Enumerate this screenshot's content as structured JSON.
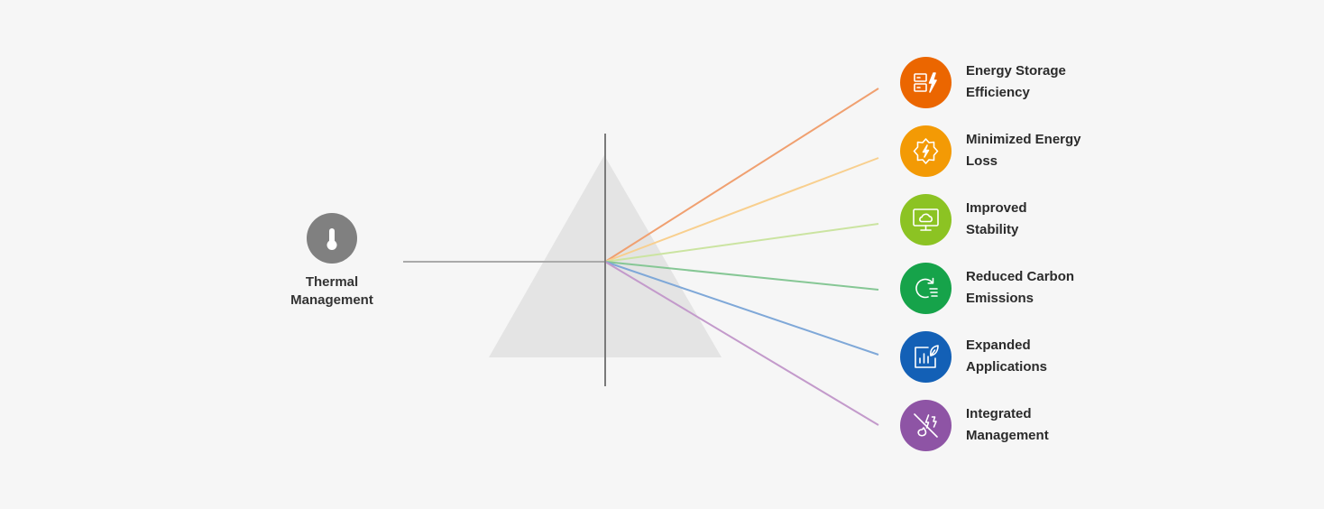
{
  "source": {
    "icon": "thermometer-icon",
    "icon_color": "#808080",
    "label_line1": "Thermal",
    "label_line2": "Management"
  },
  "prism": {
    "fill": "#e4e4e4",
    "axis_color": "#7a7a7a",
    "input_beam_color": "#aaaaaa"
  },
  "benefits": [
    {
      "line1": "Energy Storage",
      "line2": "Efficiency",
      "color": "#eb6600",
      "beam_color": "#f0a070",
      "icon": "storage-bolt-icon"
    },
    {
      "line1": "Minimized Energy",
      "line2": "Loss",
      "color": "#f39a05",
      "beam_color": "#f8cf8e",
      "icon": "bolt-badge-icon"
    },
    {
      "line1": "Improved",
      "line2": "Stability",
      "color": "#8cc323",
      "beam_color": "#cbe4a1",
      "icon": "cloud-monitor-icon"
    },
    {
      "line1": "Reduced Carbon",
      "line2": "Emissions",
      "color": "#16a34a",
      "beam_color": "#86c795",
      "icon": "cycle-list-icon"
    },
    {
      "line1": "Expanded",
      "line2": "Applications",
      "color": "#1360b6",
      "beam_color": "#7fa8d8",
      "icon": "chart-leaf-icon"
    },
    {
      "line1": "Integrated",
      "line2": "Management",
      "color": "#8e54a5",
      "beam_color": "#c39acb",
      "icon": "fire-off-icon"
    }
  ]
}
